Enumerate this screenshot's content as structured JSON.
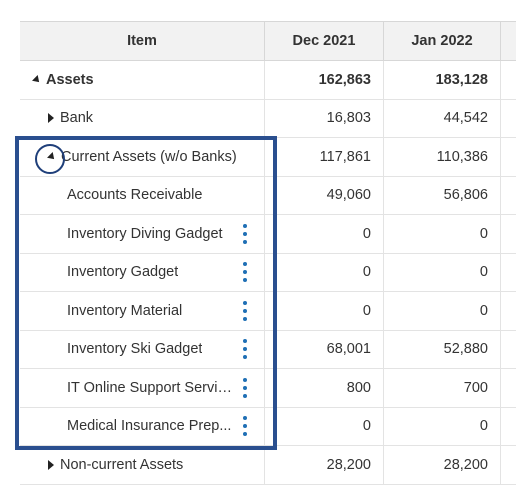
{
  "table": {
    "columns": [
      "Item",
      "Dec 2021",
      "Jan 2022"
    ],
    "rows": [
      {
        "label": "Assets",
        "dec": "162,863",
        "jan": "183,128",
        "expander": "expanded"
      },
      {
        "label": "Bank",
        "dec": "16,803",
        "jan": "44,542",
        "expander": "collapsed"
      },
      {
        "label": "Current Assets (w/o Banks)",
        "dec": "117,861",
        "jan": "110,386",
        "expander": "expanded"
      },
      {
        "label": "Accounts Receivable",
        "dec": "49,060",
        "jan": "56,806"
      },
      {
        "label": "Inventory Diving Gadget",
        "dec": "0",
        "jan": "0",
        "menu_icon": "more-vertical-icon"
      },
      {
        "label": "Inventory Gadget",
        "dec": "0",
        "jan": "0",
        "menu_icon": "more-vertical-icon"
      },
      {
        "label": "Inventory Material",
        "dec": "0",
        "jan": "0",
        "menu_icon": "more-vertical-icon"
      },
      {
        "label": "Inventory Ski Gadget",
        "dec": "68,001",
        "jan": "52,880",
        "menu_icon": "more-vertical-icon"
      },
      {
        "label": "IT Online Support Servic...",
        "dec": "800",
        "jan": "700",
        "menu_icon": "more-vertical-icon"
      },
      {
        "label": "Medical Insurance Prep...",
        "dec": "0",
        "jan": "0",
        "menu_icon": "more-vertical-icon"
      },
      {
        "label": "Non-current Assets",
        "dec": "28,200",
        "jan": "28,200",
        "expander": "collapsed"
      }
    ]
  },
  "icons": {
    "expanded": "triangle-down-icon",
    "collapsed": "triangle-right-icon",
    "row_menu": "more-vertical-icon"
  },
  "colors": {
    "annotation_box": "#2a4f8f",
    "kebab_icon": "#1f6fb5",
    "header_bg": "#f2f2f2"
  }
}
